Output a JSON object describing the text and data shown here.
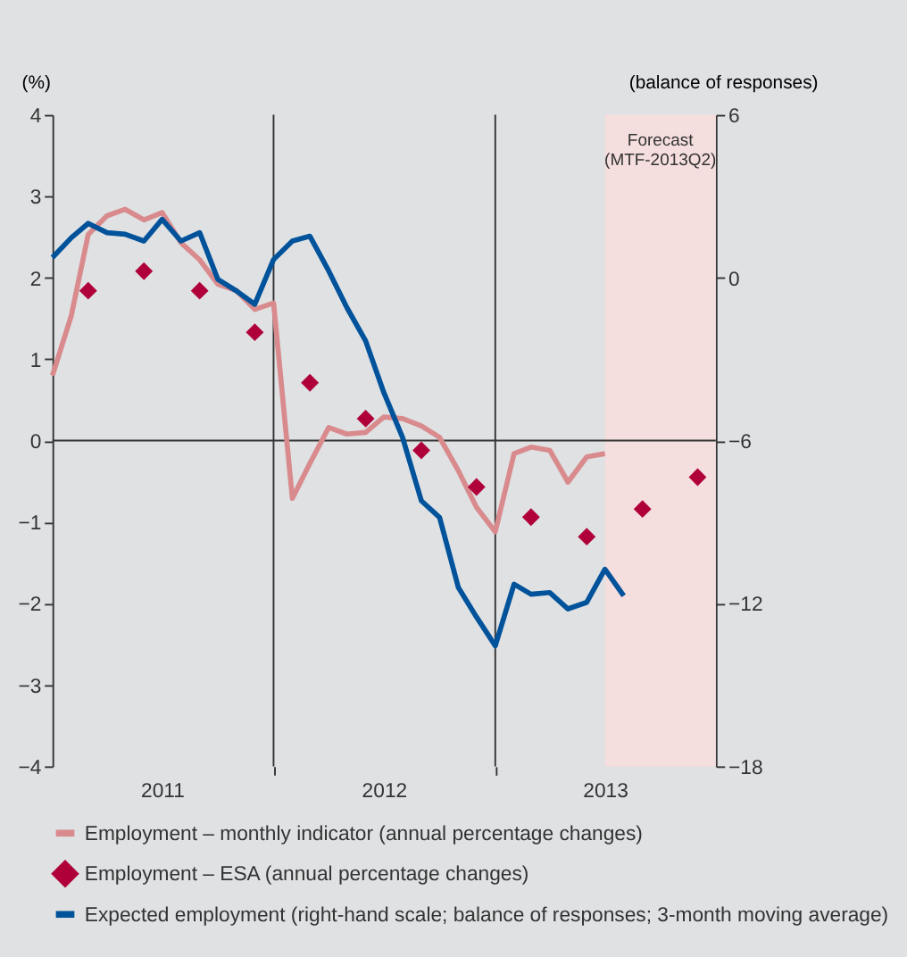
{
  "chart_data": {
    "type": "line",
    "ylabel": "(%)",
    "y2label": "(balance of responses)",
    "xlim": [
      "2011-01-01",
      "2013-12-31"
    ],
    "xticks": [
      {
        "value": "2011-07-01",
        "label": "2011"
      },
      {
        "value": "2012-01-01",
        "label": null
      },
      {
        "value": "2012-07-01",
        "label": "2012"
      },
      {
        "value": "2013-01-01",
        "label": null
      },
      {
        "value": "2013-07-01",
        "label": "2013"
      }
    ],
    "ylim": [
      -4,
      4
    ],
    "yticks": [
      -4,
      -3,
      -2,
      -1,
      0,
      1,
      2,
      3,
      4
    ],
    "y2lim": [
      -18,
      6
    ],
    "y2ticks": [
      -18,
      -12,
      -6,
      0,
      6
    ],
    "grid": false,
    "legend": "bottom",
    "series": [
      {
        "name": "Employment – monthly indicator (annual percentage changes)",
        "color": "#d98a8d",
        "x": [
          "2011-01",
          "2011-02",
          "2011-03",
          "2011-04",
          "2011-05",
          "2011-06",
          "2011-07",
          "2011-08",
          "2011-09",
          "2011-10",
          "2011-11",
          "2011-12",
          "2012-01",
          "2012-02",
          "2012-03",
          "2012-04",
          "2012-05",
          "2012-06",
          "2012-07",
          "2012-08",
          "2012-09",
          "2012-10",
          "2012-11",
          "2012-12",
          "2013-01",
          "2013-02",
          "2013-03",
          "2013-04",
          "2013-05",
          "2013-06",
          "2013-07"
        ],
        "values": [
          0.8,
          1.53,
          2.53,
          2.76,
          2.84,
          2.71,
          2.8,
          2.43,
          2.22,
          1.92,
          1.84,
          1.61,
          1.69,
          -0.71,
          -0.28,
          0.16,
          0.08,
          0.1,
          0.29,
          0.27,
          0.18,
          0.04,
          -0.37,
          -0.82,
          -1.12,
          -0.16,
          -0.08,
          -0.12,
          -0.51,
          -0.2,
          -0.16
        ]
      },
      {
        "name": "Employment – ESA (annual percentage changes)",
        "type": "scatter",
        "marker": "diamond",
        "color": "#b0003a",
        "x": [
          "2011-03",
          "2011-06",
          "2011-09",
          "2011-12",
          "2012-03",
          "2012-06",
          "2012-09",
          "2012-12",
          "2013-03",
          "2013-06",
          "2013-09",
          "2013-12"
        ],
        "values": [
          1.84,
          2.08,
          1.84,
          1.33,
          0.71,
          0.27,
          -0.12,
          -0.57,
          -0.94,
          -1.18,
          -0.84,
          -0.45
        ]
      },
      {
        "name": "Expected employment (right-hand scale; balance of responses; 3-month moving average)",
        "axis": "y2",
        "color": "#00529b",
        "x": [
          "2011-01",
          "2011-02",
          "2011-03",
          "2011-04",
          "2011-05",
          "2011-06",
          "2011-07",
          "2011-08",
          "2011-09",
          "2011-10",
          "2011-11",
          "2011-12",
          "2012-01",
          "2012-02",
          "2012-03",
          "2012-04",
          "2012-05",
          "2012-06",
          "2012-07",
          "2012-08",
          "2012-09",
          "2012-10",
          "2012-11",
          "2012-12",
          "2013-01",
          "2013-02",
          "2013-03",
          "2013-04",
          "2013-05",
          "2013-06",
          "2013-07",
          "2013-08"
        ],
        "values": [
          0.74,
          1.47,
          2.0,
          1.66,
          1.6,
          1.35,
          2.15,
          1.35,
          1.66,
          -0.06,
          -0.49,
          -0.98,
          0.67,
          1.35,
          1.53,
          0.25,
          -1.1,
          -2.33,
          -4.23,
          -5.89,
          -8.22,
          -8.83,
          -11.41,
          -12.5,
          -13.56,
          -11.29,
          -11.66,
          -11.6,
          -12.2,
          -11.96,
          -10.74,
          -11.72
        ]
      }
    ],
    "ref_lines": [
      {
        "axis": "y",
        "value": 0,
        "color": "#333333"
      },
      {
        "axis": "x",
        "value": "2012-01-01",
        "color": "#333333"
      },
      {
        "axis": "x",
        "value": "2013-01-01",
        "color": "#333333"
      }
    ],
    "bands": [
      {
        "axis": "x",
        "from": "2013-07-01",
        "to": "2013-12-31",
        "label": "Forecast\n(MTF-2013Q2)",
        "color": "#f5dede"
      }
    ]
  }
}
